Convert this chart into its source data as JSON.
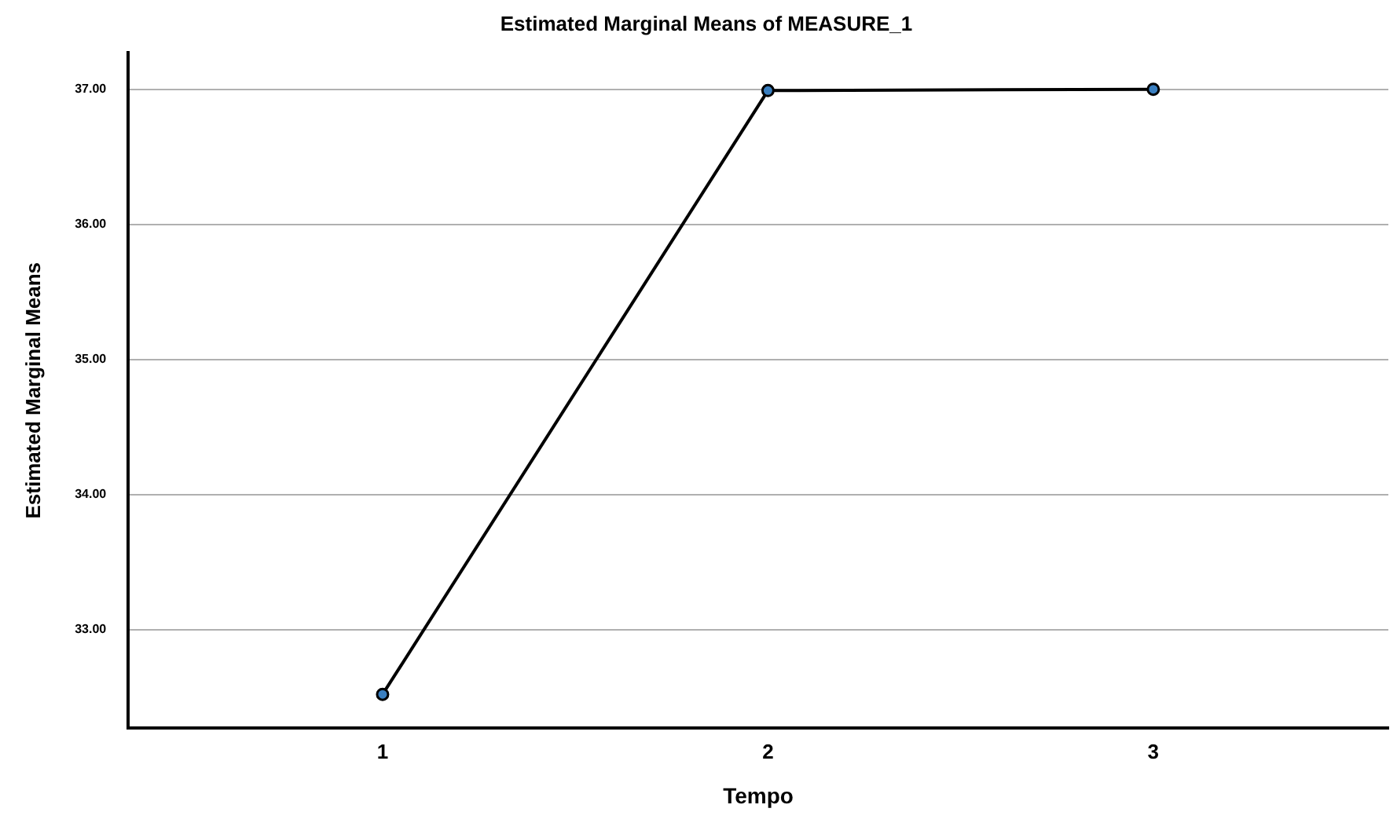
{
  "chart_data": {
    "type": "line",
    "title": "Estimated Marginal Means of MEASURE_1",
    "xlabel": "Tempo",
    "ylabel": "Estimated Marginal Means",
    "x": [
      1,
      2,
      3
    ],
    "series": [
      {
        "color": "#000000",
        "values": [
          32.52,
          36.99,
          37.0
        ]
      }
    ],
    "xlim": [
      0.34,
      3.61
    ],
    "xticks": [
      1,
      2,
      3
    ],
    "ylim": [
      32.27,
      37.27
    ],
    "yticks": [
      {
        "value": 33,
        "label": "33.00"
      },
      {
        "value": 34,
        "label": "34.00"
      },
      {
        "value": 35,
        "label": "35.00"
      },
      {
        "value": 36,
        "label": "36.00"
      },
      {
        "value": 37,
        "label": "37.00"
      }
    ],
    "grid": "y",
    "legend": false,
    "marker": "circle",
    "line_style": "solid"
  }
}
